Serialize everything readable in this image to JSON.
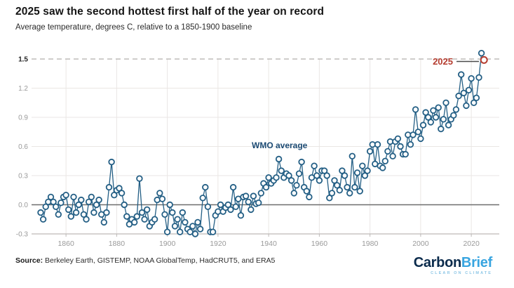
{
  "header": {
    "title": "2025 saw the second hottest first half of the year on record",
    "subtitle": "Average temperature, degrees C, relative to a 1850-1900 baseline"
  },
  "footer": {
    "source_label": "Source:",
    "source_text": " Berkeley Earth, GISTEMP, NOAA GlobalTemp, HadCRUT5, and ERA5",
    "logo": {
      "part1": "Carbon",
      "part2": "Brief",
      "tagline": "CLEAR ON CLIMATE"
    }
  },
  "colors": {
    "series_line": "#245f85",
    "marker_fill": "#ffffff",
    "highlight_red": "#b53d30",
    "annotation_navy": "#1b4a73",
    "connector_gray": "#4a4a4a",
    "gridline": "#eae6e4",
    "zero_line": "#6e6e6e",
    "axis_line": "#bdb9b7",
    "dashed_line": "#b2afac",
    "tick_gray": "#9a9a9a",
    "tick_dark": "#222222"
  },
  "chart_data": {
    "type": "line",
    "title": "2025 saw the second hottest first half of the year on record",
    "xlabel": "",
    "ylabel": "Average temperature, degrees C, relative to a 1850-1900 baseline",
    "xlim": [
      1850,
      2026
    ],
    "ylim": [
      -0.3,
      1.6
    ],
    "grid": true,
    "legend_position": "none",
    "dashed_reference_value": 1.5,
    "x_ticks": [
      1860,
      1880,
      1900,
      1920,
      1940,
      1960,
      1980,
      2000,
      2020
    ],
    "x_tick_labels": [
      "1860",
      "1880",
      "1900",
      "1920",
      "1940",
      "1960",
      "1980",
      "2000",
      "2020"
    ],
    "y_ticks": [
      -0.3,
      0.0,
      0.3,
      0.6,
      0.9,
      1.2,
      1.5
    ],
    "y_tick_labels": [
      "-0.3",
      "0.0",
      "0.3",
      "0.6",
      "0.9",
      "1.2",
      "1.5"
    ],
    "annotations": [
      {
        "id": "wmo-average-label",
        "text": "WMO average"
      },
      {
        "id": "year-2025-label",
        "text": "2025"
      }
    ],
    "highlight_point": {
      "year": 2025,
      "value": 1.49,
      "label": "2025"
    },
    "series": [
      {
        "name": "WMO average",
        "start_year": 1850,
        "end_year": 2025,
        "values": [
          -0.08,
          -0.15,
          -0.02,
          0.03,
          0.08,
          0.03,
          -0.02,
          -0.1,
          0.02,
          0.08,
          0.1,
          -0.05,
          -0.12,
          0.08,
          -0.08,
          0.0,
          0.05,
          -0.1,
          -0.15,
          0.03,
          0.08,
          -0.08,
          0.0,
          0.05,
          -0.1,
          -0.18,
          -0.08,
          0.18,
          0.44,
          0.1,
          0.15,
          0.17,
          0.12,
          0.0,
          -0.12,
          -0.2,
          -0.15,
          -0.18,
          -0.12,
          0.27,
          -0.08,
          -0.15,
          -0.05,
          -0.22,
          -0.18,
          -0.15,
          0.05,
          0.12,
          0.06,
          -0.1,
          -0.28,
          0.0,
          -0.08,
          -0.22,
          -0.15,
          -0.28,
          -0.08,
          -0.18,
          -0.25,
          -0.28,
          -0.22,
          -0.3,
          -0.18,
          -0.25,
          0.07,
          0.18,
          -0.02,
          -0.28,
          -0.28,
          -0.11,
          -0.07,
          0.0,
          -0.07,
          -0.03,
          0.0,
          -0.05,
          0.18,
          -0.02,
          0.06,
          -0.11,
          0.08,
          0.09,
          0.03,
          -0.05,
          0.09,
          0.01,
          0.02,
          0.12,
          0.22,
          0.18,
          0.28,
          0.22,
          0.25,
          0.28,
          0.47,
          0.35,
          0.28,
          0.32,
          0.3,
          0.25,
          0.12,
          0.2,
          0.32,
          0.44,
          0.18,
          0.14,
          0.08,
          0.28,
          0.4,
          0.3,
          0.25,
          0.35,
          0.35,
          0.3,
          0.07,
          0.12,
          0.25,
          0.2,
          0.15,
          0.35,
          0.3,
          0.18,
          0.12,
          0.5,
          0.18,
          0.33,
          0.14,
          0.4,
          0.3,
          0.35,
          0.55,
          0.62,
          0.42,
          0.62,
          0.4,
          0.38,
          0.45,
          0.55,
          0.65,
          0.5,
          0.65,
          0.68,
          0.6,
          0.52,
          0.52,
          0.72,
          0.62,
          0.72,
          0.98,
          0.75,
          0.68,
          0.82,
          0.95,
          0.9,
          0.85,
          0.97,
          0.9,
          1.0,
          0.78,
          0.88,
          1.05,
          0.82,
          0.88,
          0.92,
          0.98,
          1.12,
          1.34,
          1.15,
          1.02,
          1.18,
          1.3,
          1.05,
          1.1,
          1.31,
          1.56,
          1.49
        ]
      }
    ]
  }
}
